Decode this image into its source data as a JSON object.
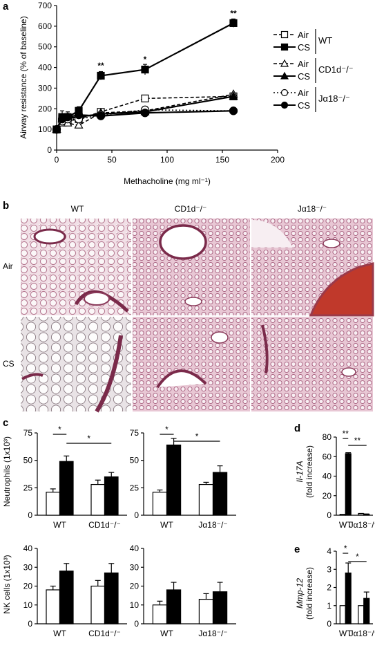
{
  "panels": {
    "a": "a",
    "b": "b",
    "c": "c",
    "d": "d",
    "e": "e"
  },
  "colors": {
    "ink": "#000000",
    "white_bar": "#ffffff",
    "tissue_pink": "#d9a6b8",
    "tissue_dark": "#7a2a4a",
    "blood": "#c0392b"
  },
  "chart_data": [
    {
      "id": "a",
      "type": "line",
      "xlabel": "Methacholine (mg ml⁻¹)",
      "ylabel": "Airway resistance (% of baseline)",
      "xlim": [
        0,
        200
      ],
      "ylim": [
        0,
        700
      ],
      "xticks": [
        0,
        50,
        100,
        150,
        200
      ],
      "yticks": [
        0,
        100,
        200,
        300,
        400,
        500,
        600,
        700
      ],
      "x": [
        0,
        5,
        10,
        20,
        40,
        80,
        160
      ],
      "series": [
        {
          "name": "Air",
          "group": "WT",
          "marker": "open-square",
          "dash": "dashed",
          "values": [
            100,
            150,
            140,
            150,
            185,
            250,
            260
          ]
        },
        {
          "name": "CS",
          "group": "WT",
          "marker": "filled-square",
          "dash": "solid",
          "values": [
            100,
            160,
            160,
            190,
            360,
            390,
            615
          ],
          "errors": [
            8,
            30,
            25,
            20,
            20,
            25,
            20
          ]
        },
        {
          "name": "Air",
          "group": "CD1d⁻/⁻",
          "marker": "open-triangle",
          "dash": "dashed",
          "values": [
            100,
            130,
            130,
            120,
            180,
            190,
            270
          ]
        },
        {
          "name": "CS",
          "group": "CD1d⁻/⁻",
          "marker": "filled-triangle",
          "dash": "solid",
          "values": [
            100,
            150,
            155,
            160,
            175,
            185,
            260
          ]
        },
        {
          "name": "Air",
          "group": "Jα18⁻/⁻",
          "marker": "open-circle",
          "dash": "dotted",
          "values": [
            100,
            140,
            150,
            150,
            170,
            195,
            190
          ]
        },
        {
          "name": "CS",
          "group": "Jα18⁻/⁻",
          "marker": "filled-circle",
          "dash": "solid",
          "values": [
            100,
            150,
            160,
            170,
            165,
            180,
            190
          ]
        }
      ],
      "annotations": [
        {
          "x": 40,
          "y": 395,
          "text": "**"
        },
        {
          "x": 80,
          "y": 425,
          "text": "*"
        },
        {
          "x": 160,
          "y": 648,
          "text": "**"
        }
      ],
      "legend": {
        "labels": [
          "Air",
          "CS",
          "Air",
          "CS",
          "Air",
          "CS"
        ],
        "groups": [
          "WT",
          "CD1d⁻/⁻",
          "Jα18⁻/⁻"
        ]
      }
    },
    {
      "id": "c1",
      "type": "bar",
      "ylabel": "Neutrophils (1x10³)",
      "ylim": [
        0,
        75
      ],
      "yticks": [
        0,
        25,
        50,
        75
      ],
      "categories": [
        "WT",
        "CD1d⁻/⁻"
      ],
      "series": [
        {
          "fill": "white",
          "values": [
            21,
            28
          ],
          "errors": [
            3,
            4
          ]
        },
        {
          "fill": "black",
          "values": [
            49,
            35
          ],
          "errors": [
            5,
            4
          ]
        }
      ],
      "sig": [
        "*",
        "*"
      ]
    },
    {
      "id": "c2",
      "type": "bar",
      "ylim": [
        0,
        75
      ],
      "yticks": [
        0,
        25,
        50,
        75
      ],
      "categories": [
        "WT",
        "Jα18⁻/⁻"
      ],
      "series": [
        {
          "fill": "white",
          "values": [
            21,
            28
          ],
          "errors": [
            2,
            2
          ]
        },
        {
          "fill": "black",
          "values": [
            64,
            39
          ],
          "errors": [
            6,
            6
          ]
        }
      ],
      "sig": [
        "*",
        "*"
      ]
    },
    {
      "id": "c3",
      "type": "bar",
      "ylabel": "NK cells (1x10³)",
      "ylim": [
        0,
        40
      ],
      "yticks": [
        0,
        10,
        20,
        30,
        40
      ],
      "categories": [
        "WT",
        "CD1d⁻/⁻"
      ],
      "series": [
        {
          "fill": "white",
          "values": [
            18,
            20
          ],
          "errors": [
            2,
            3
          ]
        },
        {
          "fill": "black",
          "values": [
            28,
            27
          ],
          "errors": [
            4,
            5
          ]
        }
      ]
    },
    {
      "id": "c4",
      "type": "bar",
      "ylim": [
        0,
        40
      ],
      "yticks": [
        0,
        10,
        20,
        30,
        40
      ],
      "categories": [
        "WT",
        "Jα18⁻/⁻"
      ],
      "series": [
        {
          "fill": "white",
          "values": [
            10,
            13
          ],
          "errors": [
            2,
            3
          ]
        },
        {
          "fill": "black",
          "values": [
            18,
            17
          ],
          "errors": [
            4,
            5
          ]
        }
      ]
    },
    {
      "id": "d",
      "type": "bar",
      "ylabel_italic": "Il-17A",
      "ylabel": "(fold increase)",
      "ylim": [
        0,
        80
      ],
      "yticks": [
        0,
        20,
        40,
        60,
        80
      ],
      "categories": [
        "WT",
        "Jα18⁻/⁻"
      ],
      "series": [
        {
          "fill": "white",
          "values": [
            1,
            1.5
          ],
          "errors": [
            0,
            0.3
          ]
        },
        {
          "fill": "black",
          "values": [
            63,
            1
          ],
          "errors": [
            1,
            0.3
          ]
        }
      ],
      "sig": [
        "**",
        "**"
      ]
    },
    {
      "id": "e",
      "type": "bar",
      "ylabel_italic": "Mmp-12",
      "ylabel": "(fold increase)",
      "ylim": [
        0,
        4
      ],
      "yticks": [
        0,
        1,
        2,
        3,
        4
      ],
      "categories": [
        "WT",
        "Jα18⁻/⁻"
      ],
      "series": [
        {
          "fill": "white",
          "values": [
            1,
            1
          ],
          "errors": [
            0,
            0
          ]
        },
        {
          "fill": "black",
          "values": [
            2.8,
            1.4
          ],
          "errors": [
            0.55,
            0.35
          ]
        }
      ],
      "sig": [
        "*",
        "*"
      ]
    }
  ],
  "histology": {
    "columns": [
      "WT",
      "CD1d⁻/⁻",
      "Jα18⁻/⁻"
    ],
    "rows": [
      "Air",
      "CS"
    ]
  }
}
